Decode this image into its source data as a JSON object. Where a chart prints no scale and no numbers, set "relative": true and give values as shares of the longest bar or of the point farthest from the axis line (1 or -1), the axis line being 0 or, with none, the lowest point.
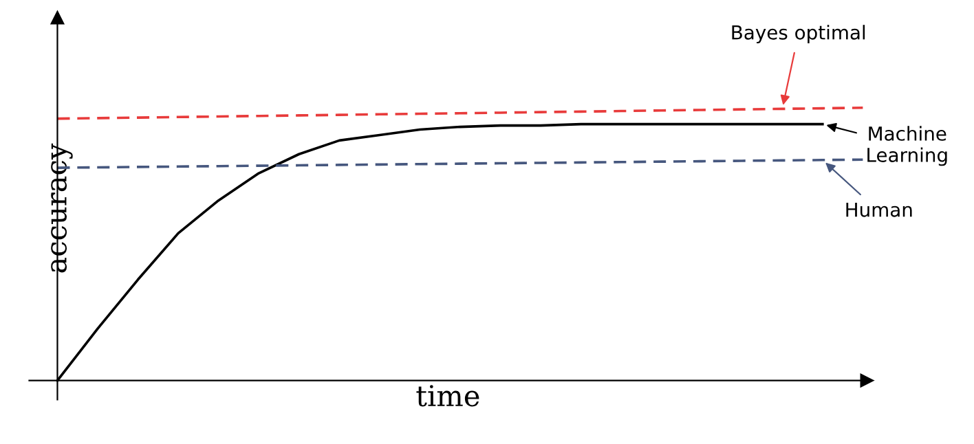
{
  "chart_data": {
    "type": "line",
    "relative": true,
    "xlabel": "time",
    "ylabel": "accuracy",
    "line_style": "solid",
    "marker": "none",
    "categories": [
      null,
      null,
      null,
      null,
      null,
      null,
      null,
      null,
      null,
      null,
      null,
      null,
      null,
      null,
      null,
      null,
      null,
      null,
      null,
      null,
      null
    ],
    "series": [
      {
        "name": "Bayes optimal",
        "color": "#e83b3b",
        "line_style": "dashed",
        "values": [
          0.96,
          0.962,
          0.964,
          0.966,
          0.968,
          0.97,
          0.972,
          0.974,
          0.976,
          0.978,
          0.98,
          0.982,
          0.984,
          0.986,
          0.988,
          0.99,
          0.992,
          0.994,
          0.996,
          0.998,
          1.0
        ]
      },
      {
        "name": "Machine Learning",
        "color": "#000000",
        "values": [
          0,
          0.19,
          0.37,
          0.54,
          0.66,
          0.76,
          0.83,
          0.88,
          0.9,
          0.92,
          0.93,
          0.935,
          0.935,
          0.94,
          0.94,
          0.94,
          0.94,
          0.94,
          0.94,
          0.94,
          null
        ]
      },
      {
        "name": "Human",
        "color": "#46577e",
        "line_style": "dashed",
        "values": [
          0.78,
          0.7815,
          0.783,
          0.7845,
          0.786,
          0.7875,
          0.789,
          0.7905,
          0.792,
          0.7935,
          0.795,
          0.7965,
          0.798,
          0.7995,
          0.801,
          0.8025,
          0.804,
          0.8055,
          0.807,
          0.8085,
          0.81
        ]
      }
    ]
  }
}
